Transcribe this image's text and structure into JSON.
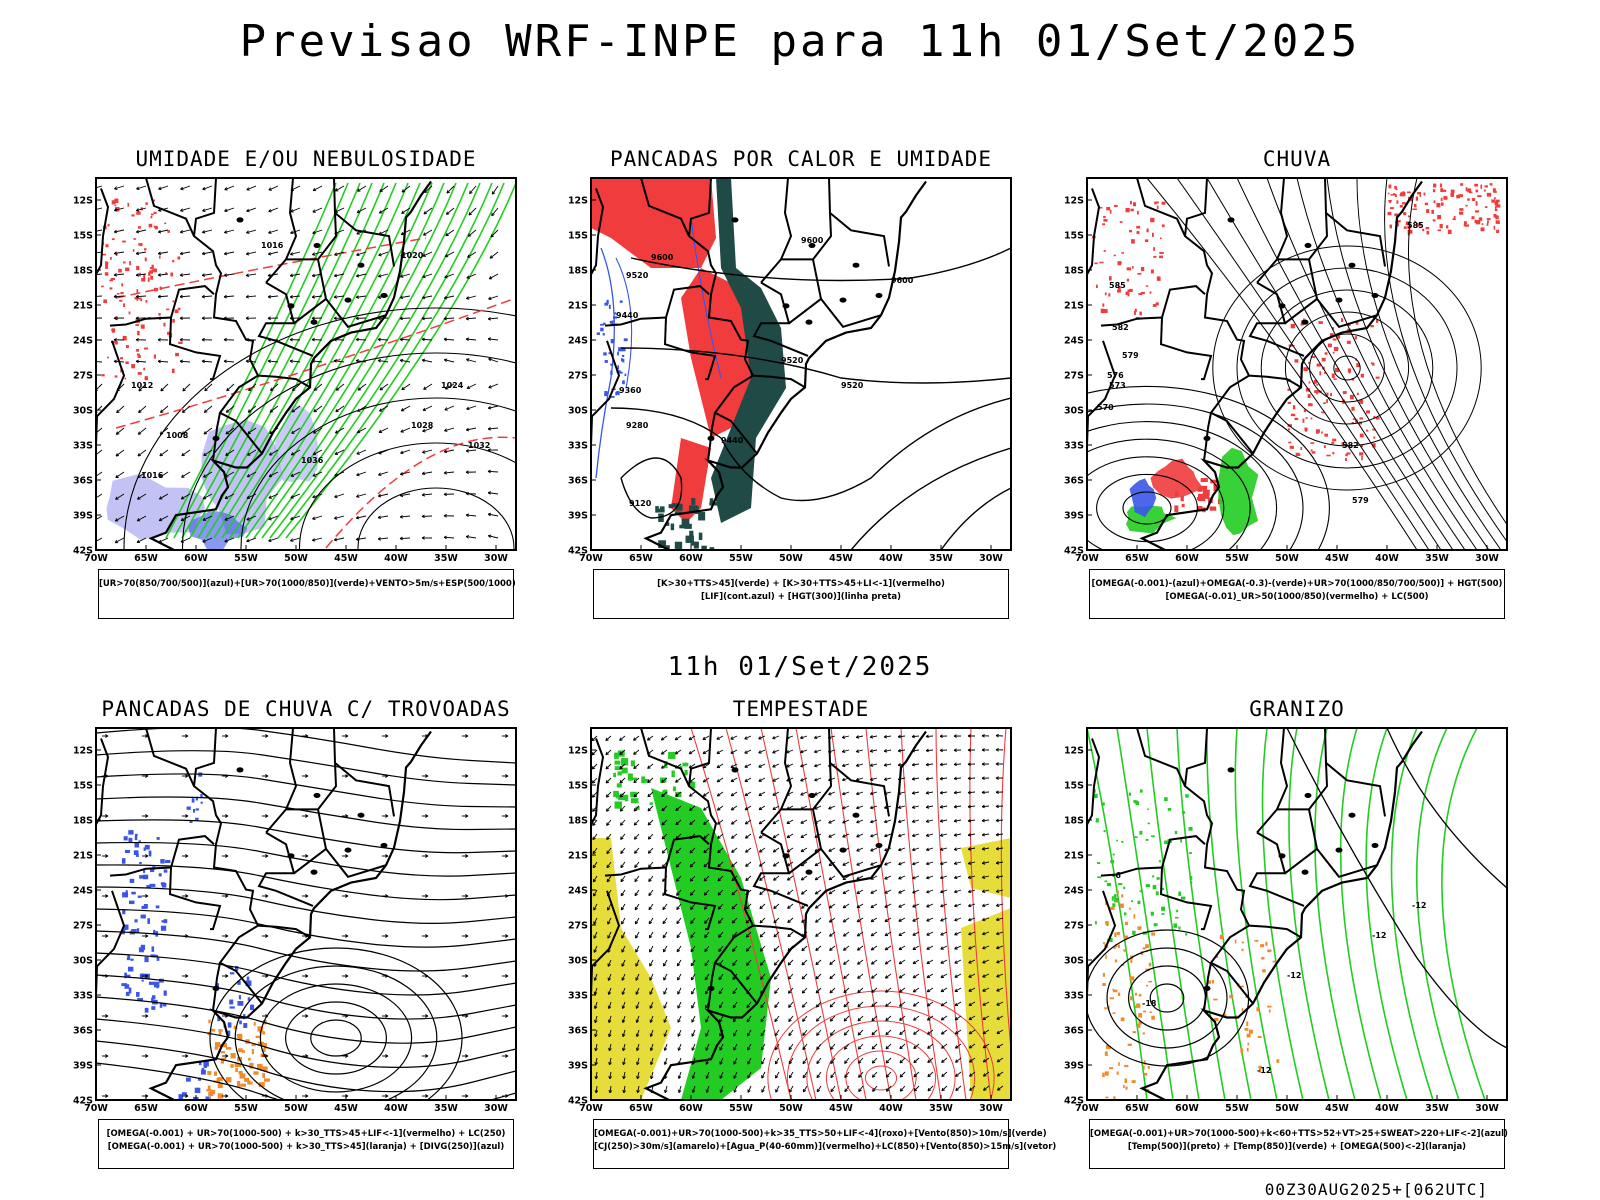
{
  "header": {
    "title": "Previsao WRF-INPE  para 11h 01/Set/2025",
    "mid_title": "11h 01/Set/2025",
    "footer": "00Z30AUG2025+[062UTC]"
  },
  "axes": {
    "lat_labels": [
      "12S",
      "15S",
      "18S",
      "21S",
      "24S",
      "27S",
      "30S",
      "33S",
      "36S",
      "39S",
      "42S"
    ],
    "lon_labels": [
      "70W",
      "65W",
      "60W",
      "55W",
      "50W",
      "45W",
      "40W",
      "35W",
      "30W"
    ]
  },
  "colors": {
    "frame": "#000000",
    "red": "#f03c3c",
    "green": "#22cc22",
    "blue": "#3a55e8",
    "lavender": "#a8aaf0",
    "dark_teal": "#1f4a46",
    "yellow": "#e6dd3a",
    "orange": "#f08a2a"
  },
  "panels": [
    {
      "id": "umidade",
      "title": "UMIDADE E/OU NEBULOSIDADE",
      "legend": [
        "[UR>70(850/700/500)](azul)+[UR>70(1000/850)](verde)+VENTO>5m/s+ESP(500/1000)"
      ],
      "contour_labels": [
        "1016",
        "1020",
        "1024",
        "1028",
        "1032",
        "1036",
        "1012",
        "1008",
        "1016"
      ]
    },
    {
      "id": "pancadas-calor",
      "title": "PANCADAS POR CALOR E UMIDADE",
      "legend": [
        "[K>30+TTS>45](verde) + [K>30+TTS>45+LI<-1](vermelho)",
        "[LIF](cont.azul) + [HGT(300)](linha preta)"
      ],
      "contour_labels": [
        "9600",
        "9520",
        "9440",
        "9360",
        "9280",
        "9120",
        "9600",
        "9520",
        "9440",
        "9600",
        "9520"
      ]
    },
    {
      "id": "chuva",
      "title": "CHUVA",
      "legend": [
        "[OMEGA(-0.001)-(azul)+OMEGA(-0.3)-(verde)+UR>70(1000/850/700/500)] + HGT(500)",
        "[OMEGA(-0.01)_UR>50(1000/850)(vermelho) + LC(500)"
      ],
      "contour_labels": [
        "585",
        "582",
        "579",
        "576",
        "573",
        "570",
        "582",
        "579",
        "585"
      ]
    },
    {
      "id": "pancadas-trovoadas",
      "title": "PANCADAS DE CHUVA C/ TROVOADAS",
      "legend": [
        "[OMEGA(-0.001) + UR>70(1000-500) + k>30_TTS>45+LIF<-1](vermelho) + LC(250)",
        "[OMEGA(-0.001) + UR>70(1000-500) + k>30_TTS>45](laranja) + [DIVG(250)](azul)"
      ],
      "contour_labels": []
    },
    {
      "id": "tempestade",
      "title": "TEMPESTADE",
      "legend": [
        "[OMEGA(-0.001)+UR>70(1000-500)+k>35_TTS>50+LIF<-4](roxo)+[Vento(850)>10m/s](verde)",
        "[CJ(250)>30m/s](amarelo)+[Agua_P(40-60mm)](vermelho)+LC(850)+[Vento(850)>15m/s](vetor)"
      ],
      "contour_labels": []
    },
    {
      "id": "granizo",
      "title": "GRANIZO",
      "legend": [
        "[OMEGA(-0.001)+UR>70(1000-500)+k<60+TTS>52+VT>25+SWEAT>220+LIF<-2](azul)",
        "[Temp(500)](preto) + [Temp(850)](verde) + [OMEGA(500)<-2](laranja)"
      ],
      "contour_labels": [
        "-12",
        "-12",
        "-12",
        "-18",
        "-12",
        "-6"
      ]
    }
  ]
}
